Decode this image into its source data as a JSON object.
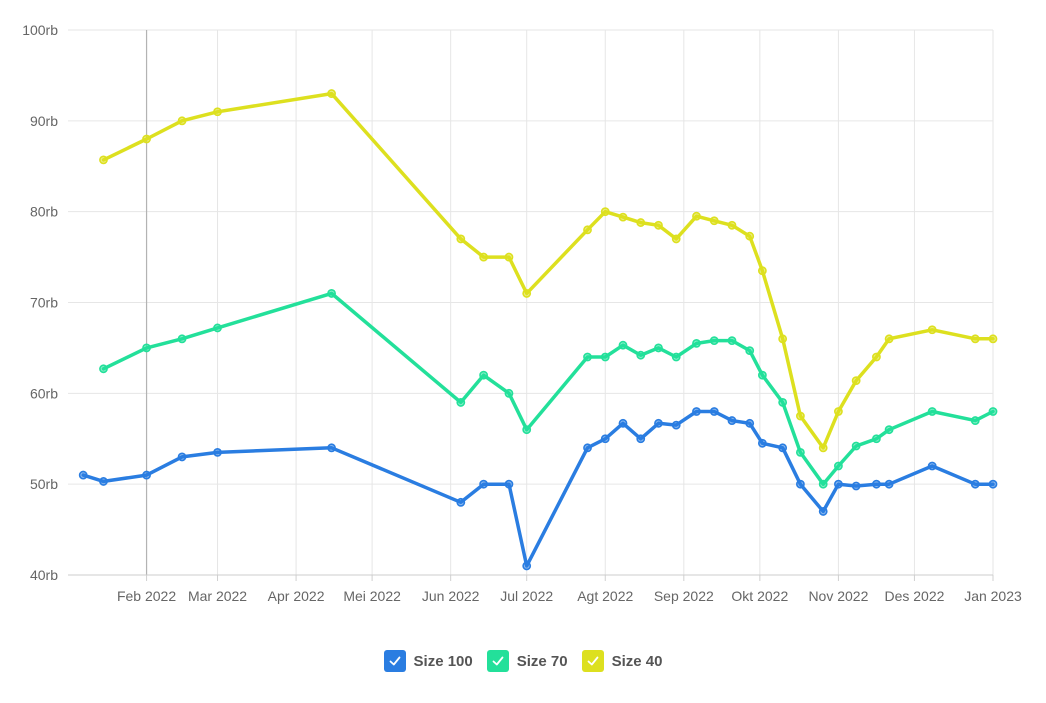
{
  "chart_data": {
    "type": "line",
    "title": "",
    "xlabel": "",
    "ylabel": "",
    "ylim": [
      40000,
      100000
    ],
    "xlim": [
      "2022-01-01",
      "2023-01-01"
    ],
    "y_ticks": [
      {
        "value": 40000,
        "label": "40rb"
      },
      {
        "value": 50000,
        "label": "50rb"
      },
      {
        "value": 60000,
        "label": "60rb"
      },
      {
        "value": 70000,
        "label": "70rb"
      },
      {
        "value": 80000,
        "label": "80rb"
      },
      {
        "value": 90000,
        "label": "90rb"
      },
      {
        "value": 100000,
        "label": "100rb"
      }
    ],
    "x_ticks": [
      {
        "date": "2022-02-01",
        "label": "Feb 2022"
      },
      {
        "date": "2022-03-01",
        "label": "Mar 2022"
      },
      {
        "date": "2022-04-01",
        "label": "Apr 2022"
      },
      {
        "date": "2022-05-01",
        "label": "Mei 2022"
      },
      {
        "date": "2022-06-01",
        "label": "Jun 2022"
      },
      {
        "date": "2022-07-01",
        "label": "Jul 2022"
      },
      {
        "date": "2022-08-01",
        "label": "Agt 2022"
      },
      {
        "date": "2022-09-01",
        "label": "Sep 2022"
      },
      {
        "date": "2022-10-01",
        "label": "Okt 2022"
      },
      {
        "date": "2022-11-01",
        "label": "Nov 2022"
      },
      {
        "date": "2022-12-01",
        "label": "Des 2022"
      },
      {
        "date": "2023-01-01",
        "label": "Jan 2023"
      }
    ],
    "grid": true,
    "legend_position": "bottom-center",
    "highlight_date": "2022-02-01",
    "series": [
      {
        "name": "Size 100",
        "color": "#2a7de1",
        "points": [
          [
            "2022-01-07",
            51000
          ],
          [
            "2022-01-15",
            50300
          ],
          [
            "2022-02-01",
            51000
          ],
          [
            "2022-02-15",
            53000
          ],
          [
            "2022-03-01",
            53500
          ],
          [
            "2022-04-15",
            54000
          ],
          [
            "2022-06-05",
            48000
          ],
          [
            "2022-06-14",
            50000
          ],
          [
            "2022-06-24",
            50000
          ],
          [
            "2022-07-01",
            41000
          ],
          [
            "2022-07-25",
            54000
          ],
          [
            "2022-08-01",
            55000
          ],
          [
            "2022-08-08",
            56700
          ],
          [
            "2022-08-15",
            55000
          ],
          [
            "2022-08-22",
            56700
          ],
          [
            "2022-08-29",
            56500
          ],
          [
            "2022-09-06",
            58000
          ],
          [
            "2022-09-13",
            58000
          ],
          [
            "2022-09-20",
            57000
          ],
          [
            "2022-09-27",
            56700
          ],
          [
            "2022-10-02",
            54500
          ],
          [
            "2022-10-10",
            54000
          ],
          [
            "2022-10-17",
            50000
          ],
          [
            "2022-10-26",
            47000
          ],
          [
            "2022-11-01",
            50000
          ],
          [
            "2022-11-08",
            49800
          ],
          [
            "2022-11-16",
            50000
          ],
          [
            "2022-11-21",
            50000
          ],
          [
            "2022-12-08",
            52000
          ],
          [
            "2022-12-25",
            50000
          ],
          [
            "2023-01-01",
            50000
          ]
        ]
      },
      {
        "name": "Size 70",
        "color": "#23e09a",
        "points": [
          [
            "2022-01-15",
            62700
          ],
          [
            "2022-02-01",
            65000
          ],
          [
            "2022-02-15",
            66000
          ],
          [
            "2022-03-01",
            67200
          ],
          [
            "2022-04-15",
            71000
          ],
          [
            "2022-06-05",
            59000
          ],
          [
            "2022-06-14",
            62000
          ],
          [
            "2022-06-24",
            60000
          ],
          [
            "2022-07-01",
            56000
          ],
          [
            "2022-07-25",
            64000
          ],
          [
            "2022-08-01",
            64000
          ],
          [
            "2022-08-08",
            65300
          ],
          [
            "2022-08-15",
            64200
          ],
          [
            "2022-08-22",
            65000
          ],
          [
            "2022-08-29",
            64000
          ],
          [
            "2022-09-06",
            65500
          ],
          [
            "2022-09-13",
            65800
          ],
          [
            "2022-09-20",
            65800
          ],
          [
            "2022-09-27",
            64700
          ],
          [
            "2022-10-02",
            62000
          ],
          [
            "2022-10-10",
            59000
          ],
          [
            "2022-10-17",
            53500
          ],
          [
            "2022-10-26",
            50000
          ],
          [
            "2022-11-01",
            52000
          ],
          [
            "2022-11-08",
            54200
          ],
          [
            "2022-11-16",
            55000
          ],
          [
            "2022-11-21",
            56000
          ],
          [
            "2022-12-08",
            58000
          ],
          [
            "2022-12-25",
            57000
          ],
          [
            "2023-01-01",
            58000
          ]
        ]
      },
      {
        "name": "Size 40",
        "color": "#dde01f",
        "points": [
          [
            "2022-01-15",
            85700
          ],
          [
            "2022-02-01",
            88000
          ],
          [
            "2022-02-15",
            90000
          ],
          [
            "2022-03-01",
            91000
          ],
          [
            "2022-04-15",
            93000
          ],
          [
            "2022-06-05",
            77000
          ],
          [
            "2022-06-14",
            75000
          ],
          [
            "2022-06-24",
            75000
          ],
          [
            "2022-07-01",
            71000
          ],
          [
            "2022-07-25",
            78000
          ],
          [
            "2022-08-01",
            80000
          ],
          [
            "2022-08-08",
            79400
          ],
          [
            "2022-08-15",
            78800
          ],
          [
            "2022-08-22",
            78500
          ],
          [
            "2022-08-29",
            77000
          ],
          [
            "2022-09-06",
            79500
          ],
          [
            "2022-09-13",
            79000
          ],
          [
            "2022-09-20",
            78500
          ],
          [
            "2022-09-27",
            77300
          ],
          [
            "2022-10-02",
            73500
          ],
          [
            "2022-10-10",
            66000
          ],
          [
            "2022-10-17",
            57500
          ],
          [
            "2022-10-26",
            54000
          ],
          [
            "2022-11-01",
            58000
          ],
          [
            "2022-11-08",
            61400
          ],
          [
            "2022-11-16",
            64000
          ],
          [
            "2022-11-21",
            66000
          ],
          [
            "2022-12-08",
            67000
          ],
          [
            "2022-12-25",
            66000
          ],
          [
            "2023-01-01",
            66000
          ]
        ]
      }
    ]
  }
}
